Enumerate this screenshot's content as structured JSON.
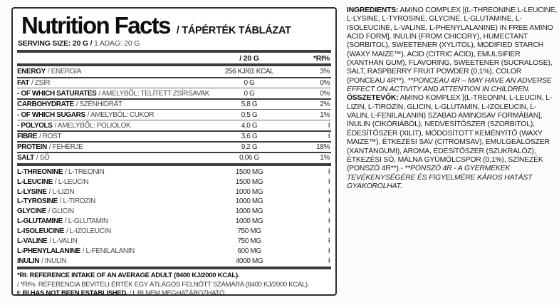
{
  "colors": {
    "ink": "#111111",
    "ink-soft": "#4a4a4a",
    "rule": "#6e6e6e",
    "bar": "#3d3d3d",
    "panel-border": "#2d2d2d",
    "bg": "#ffffff",
    "page-bg": "#fcfcfc"
  },
  "panel": {
    "title": "Nutrition Facts",
    "title_suffix": "/ TÁPÉRTÉK TÁBLÁZAT",
    "serving_bold": "SERVING SIZE: 20 G /",
    "serving_rest": " 1 ADAG: 20 G",
    "columns": {
      "amount": "/ 20 G",
      "ri": "*RI%"
    },
    "rows": [
      {
        "en": "ENERGY",
        "hu": "/ ENERGIA",
        "amount": "256 KJ/61 KCAL",
        "ri": "3%",
        "sep": "none",
        "section": "nutrient"
      },
      {
        "en": "FAT",
        "hu": "/ ZSÍR",
        "amount": "0 G",
        "ri": "0%",
        "sep": "medium",
        "section": "nutrient"
      },
      {
        "en": "- OF WHICH SATURATES",
        "hu": "/ AMELYBŐL: TELÍTETT ZSÍRSAVAK",
        "amount": "0 G",
        "ri": "0%",
        "sep": "thin",
        "section": "nutrient"
      },
      {
        "en": "CARBOHYDRATE",
        "hu": "/ SZÉNHIDRÁT",
        "amount": "5,8 G",
        "ri": "2%",
        "sep": "medium",
        "section": "nutrient"
      },
      {
        "en": "- OF WHICH SUGARS",
        "hu": "/ AMELYBŐL: CUKOR",
        "amount": "0,5 G",
        "ri": "1%",
        "sep": "thin",
        "section": "nutrient"
      },
      {
        "en": "- POLYOLS",
        "hu": "/ AMELYBŐL: POLIOLOK",
        "amount": "4,0 G",
        "ri": "ƚ",
        "sep": "thin",
        "section": "nutrient"
      },
      {
        "en": "FIBRE",
        "hu": "/ ROST",
        "amount": "3,6 G",
        "ri": "ƚ",
        "sep": "medium",
        "section": "nutrient"
      },
      {
        "en": "PROTEIN",
        "hu": "/ FEHÉRJE",
        "amount": "9,2 G",
        "ri": "18%",
        "sep": "medium",
        "section": "nutrient"
      },
      {
        "en": "SALT",
        "hu": "/ SÓ",
        "amount": "0,06 G",
        "ri": "1%",
        "sep": "medium",
        "section": "nutrient"
      },
      {
        "en": "L-THREONINE",
        "hu": "/ L-TREONIN",
        "amount": "1500 MG",
        "ri": "ƚ",
        "sep": "bar",
        "section": "amino"
      },
      {
        "en": "L-LEUCINE",
        "hu": "/ L-LEUCIN",
        "amount": "1500 MG",
        "ri": "ƚ",
        "sep": "none",
        "section": "amino"
      },
      {
        "en": "L-LYSINE",
        "hu": "/ L-LIZIN",
        "amount": "1000 MG",
        "ri": "ƚ",
        "sep": "none",
        "section": "amino"
      },
      {
        "en": "L-TYROSINE",
        "hu": "/ L-TIROZIN",
        "amount": "1000 MG",
        "ri": "ƚ",
        "sep": "none",
        "section": "amino"
      },
      {
        "en": "GLYCINE",
        "hu": "/ GLICIN",
        "amount": "1000 MG",
        "ri": "ƚ",
        "sep": "none",
        "section": "amino"
      },
      {
        "en": "L-GLUTAMINE",
        "hu": "/ L-GLUTAMIN",
        "amount": "1000 MG",
        "ri": "ƚ",
        "sep": "none",
        "section": "amino"
      },
      {
        "en": "L-ISOLEUCINE",
        "hu": "/ L-IZOLEUCIN",
        "amount": "750 MG",
        "ri": "ƚ",
        "sep": "none",
        "section": "amino"
      },
      {
        "en": "L-VALINE",
        "hu": "/ L-VALIN",
        "amount": "750 MG",
        "ri": "ƚ",
        "sep": "none",
        "section": "amino"
      },
      {
        "en": "L-PHENYLALANINE",
        "hu": "/ L-FENILALANIN",
        "amount": "600 MG",
        "ri": "ƚ",
        "sep": "none",
        "section": "amino"
      },
      {
        "en": "INULIN",
        "hu": "/ INULIN",
        "amount": "4000 MG",
        "ri": "ƚ",
        "sep": "none",
        "section": "amino"
      }
    ],
    "footnotes": {
      "line1": "*RI: REFERENCE INTAKE OF AN AVERAGE ADULT (8400 KJ/2000 KCAL).",
      "line2": "/ *RI%: REFERENCIA BEVITELI ÉRTÉK EGY ÁTLAGOS FELNŐTT SZÁMÁRA (8400 KJ/2000 KCAL).",
      "line3_bold": "ƚ: RI HAS NOT BEEN ESTABLISHED.",
      "line3_rest": " / ƚ: RI NEM MEGHATÁROZHATÓ."
    }
  },
  "ingredients": {
    "en": {
      "label": "INGREDIENTS:",
      "body": " AMINO COMPLEX [(L-THREONINE L-LEUCINE, L-LYSINE, L-TYROSINE, GLYCINE, L-GLUTAMINE, L-ISOLEUCINE, L-VALINE, L-PHENYLALANINE) IN FREE AMINO ACID FORM], INULIN (FROM CHICORY), HUMECTANT (SORBITOL), SWEETENER (XYLITOL), MODIFIED STARCH (WAXY MAIZE™), ACID (CITRIC ACID), EMULSIFIER (XANTHAN GUM), FLAVORING, SWEETENER (SUCRALOSE), SALT, RASPBERRY FRUIT POWDER (0,1%), COLOR (PONCEAU 4R**). ",
      "warning": "**PONCEAU 4R – MAY HAVE AN ADVERSE EFFECT ON ACTIVITY AND ATTENTION IN CHILDREN."
    },
    "hu": {
      "label": "ÖSSZETEVŐK:",
      "body": " AMINO KOMPLEX [(L-TREONIN, L-LEUCIN, L-LIZIN, L-TIROZIN, GLICIN, L-GLUTAMIN, L-IZOLEUCIN, L-VALIN, L-FENILALANIN) SZABAD AMINOSAV FORMÁBAN], INULIN (CIKÓRIÁBÓL), NEDVESÍTŐSZER (SZORBITOL), ÉDESÍTŐSZER (XILIT), MÓDOSÍTOTT KEMÉNYÍTŐ (WAXY MAIZE™), ÉTKEZÉSI SAV (CITROMSAV), EMULGEÁLÓSZER (XANTÁNGUMI), AROMA, ÉDESÍTŐSZER (SZUKRALÓZ), ÉTKEZÉSI SÓ, MÁLNA GYÜMÖLCSPOR (0,1%), SZÍNEZÉK (PONSZÓ 4R**).- ",
      "warning": "**PONSZÓ 4R - A GYERMEKEK TEVÉKENYSÉGÉRE ÉS FIGYELMÉRE KÁROS HATÁST GYAKOROLHAT."
    }
  }
}
